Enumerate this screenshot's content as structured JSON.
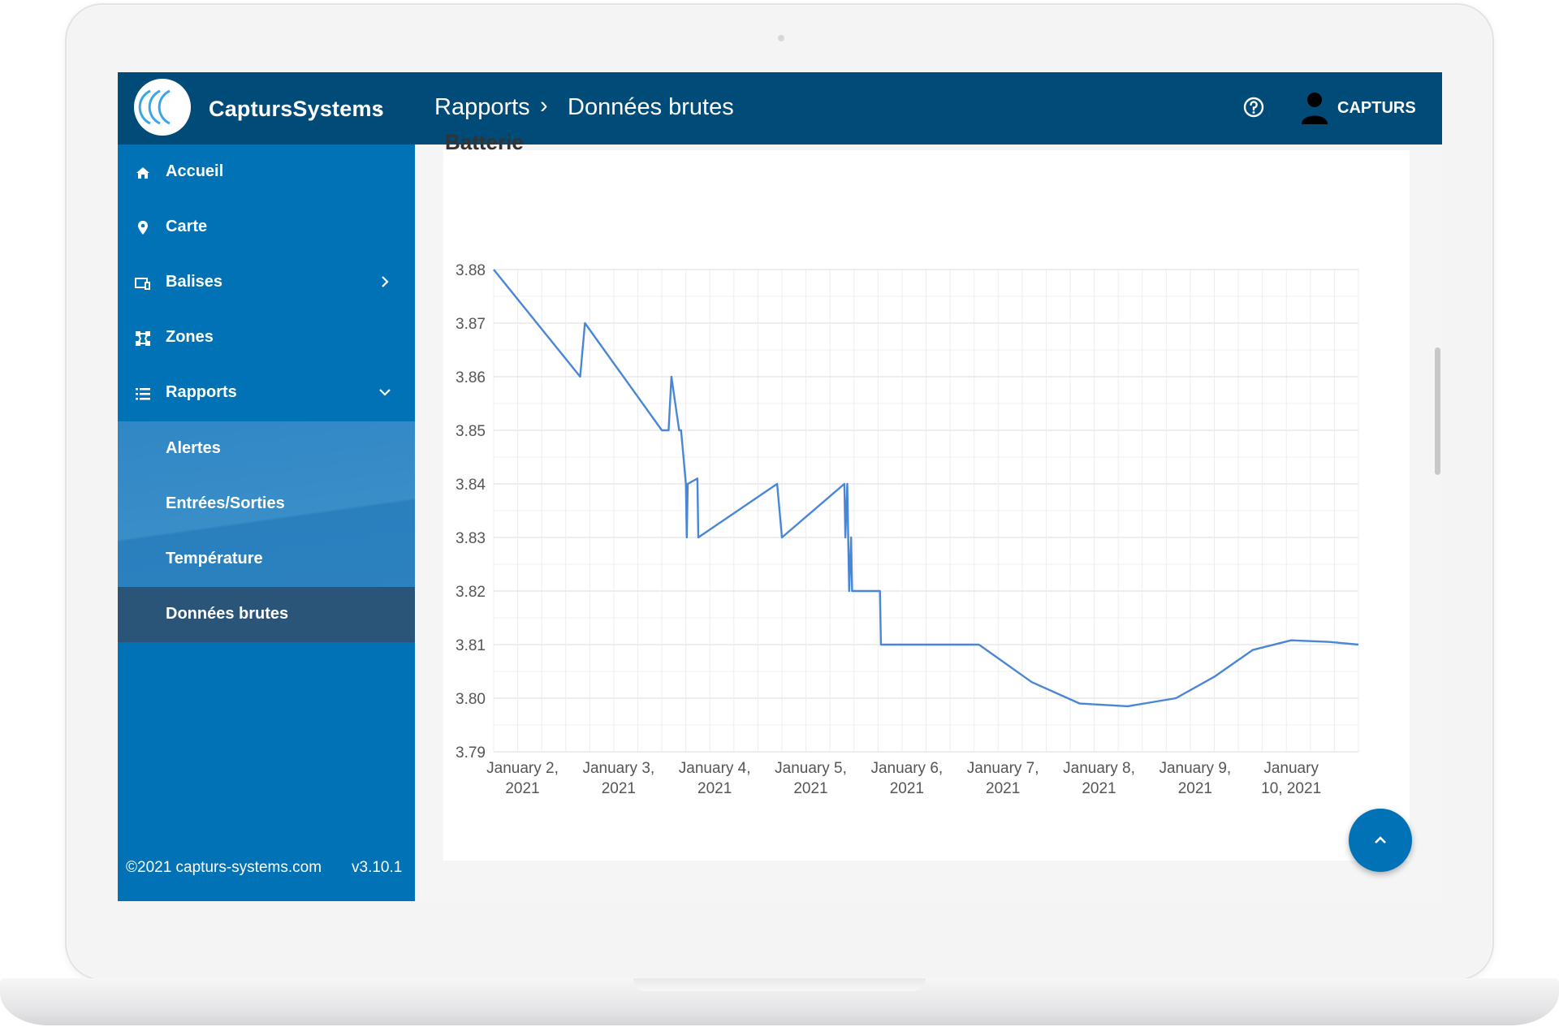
{
  "app": {
    "brand": "CaptursSystems",
    "user_name": "CAPTURS"
  },
  "breadcrumb": {
    "parent": "Rapports",
    "separator": "›",
    "current": "Données brutes"
  },
  "sidebar": {
    "items": [
      {
        "label": "Accueil",
        "icon": "home-icon"
      },
      {
        "label": "Carte",
        "icon": "location-pin-icon"
      },
      {
        "label": "Balises",
        "icon": "devices-icon"
      },
      {
        "label": "Zones",
        "icon": "zones-icon"
      },
      {
        "label": "Rapports",
        "icon": "list-icon"
      }
    ],
    "sub_items": [
      {
        "label": "Alertes"
      },
      {
        "label": "Entrées/Sorties"
      },
      {
        "label": "Température"
      },
      {
        "label": "Données brutes",
        "active": true
      }
    ],
    "footer_copyright": "©2021 capturs-systems.com",
    "footer_version": "v3.10.1"
  },
  "card": {
    "title": "Batterie"
  },
  "colors": {
    "topbar": "#004b78",
    "sidebar": "#0072b5",
    "active_item": "#2a5478",
    "line": "#4a86d6"
  },
  "chart_data": {
    "type": "line",
    "title": "Batterie",
    "xlabel": "",
    "ylabel": "",
    "ylim": [
      3.79,
      3.88
    ],
    "xlim": [
      1.7,
      10.7
    ],
    "y_ticks": [
      "3.88",
      "3.87",
      "3.86",
      "3.85",
      "3.84",
      "3.83",
      "3.82",
      "3.81",
      "3.80",
      "3.79"
    ],
    "x_ticks": [
      {
        "value": 2,
        "line1": "January 2,",
        "line2": "2021"
      },
      {
        "value": 3,
        "line1": "January 3,",
        "line2": "2021"
      },
      {
        "value": 4,
        "line1": "January 4,",
        "line2": "2021"
      },
      {
        "value": 5,
        "line1": "January 5,",
        "line2": "2021"
      },
      {
        "value": 6,
        "line1": "January 6,",
        "line2": "2021"
      },
      {
        "value": 7,
        "line1": "January 7,",
        "line2": "2021"
      },
      {
        "value": 8,
        "line1": "January 8,",
        "line2": "2021"
      },
      {
        "value": 9,
        "line1": "January 9,",
        "line2": "2021"
      },
      {
        "value": 10,
        "line1": "January",
        "line2": "10, 2021"
      }
    ],
    "series": [
      {
        "name": "Batterie",
        "points": [
          [
            1.7,
            3.88
          ],
          [
            2.6,
            3.86
          ],
          [
            2.65,
            3.87
          ],
          [
            3.45,
            3.85
          ],
          [
            3.52,
            3.85
          ],
          [
            3.55,
            3.86
          ],
          [
            3.63,
            3.85
          ],
          [
            3.65,
            3.85
          ],
          [
            3.7,
            3.84
          ],
          [
            3.71,
            3.83
          ],
          [
            3.72,
            3.84
          ],
          [
            3.82,
            3.841
          ],
          [
            3.83,
            3.83
          ],
          [
            4.65,
            3.84
          ],
          [
            4.7,
            3.83
          ],
          [
            5.35,
            3.84
          ],
          [
            5.36,
            3.83
          ],
          [
            5.38,
            3.84
          ],
          [
            5.39,
            3.83
          ],
          [
            5.4,
            3.82
          ],
          [
            5.42,
            3.83
          ],
          [
            5.43,
            3.82
          ],
          [
            5.72,
            3.82
          ],
          [
            5.73,
            3.81
          ],
          [
            6.75,
            3.81
          ],
          [
            7.3,
            3.803
          ],
          [
            7.8,
            3.799
          ],
          [
            8.3,
            3.7985
          ],
          [
            8.8,
            3.8
          ],
          [
            9.2,
            3.804
          ],
          [
            9.6,
            3.809
          ],
          [
            10.0,
            3.8108
          ],
          [
            10.4,
            3.8105
          ],
          [
            10.7,
            3.81
          ]
        ]
      }
    ]
  }
}
